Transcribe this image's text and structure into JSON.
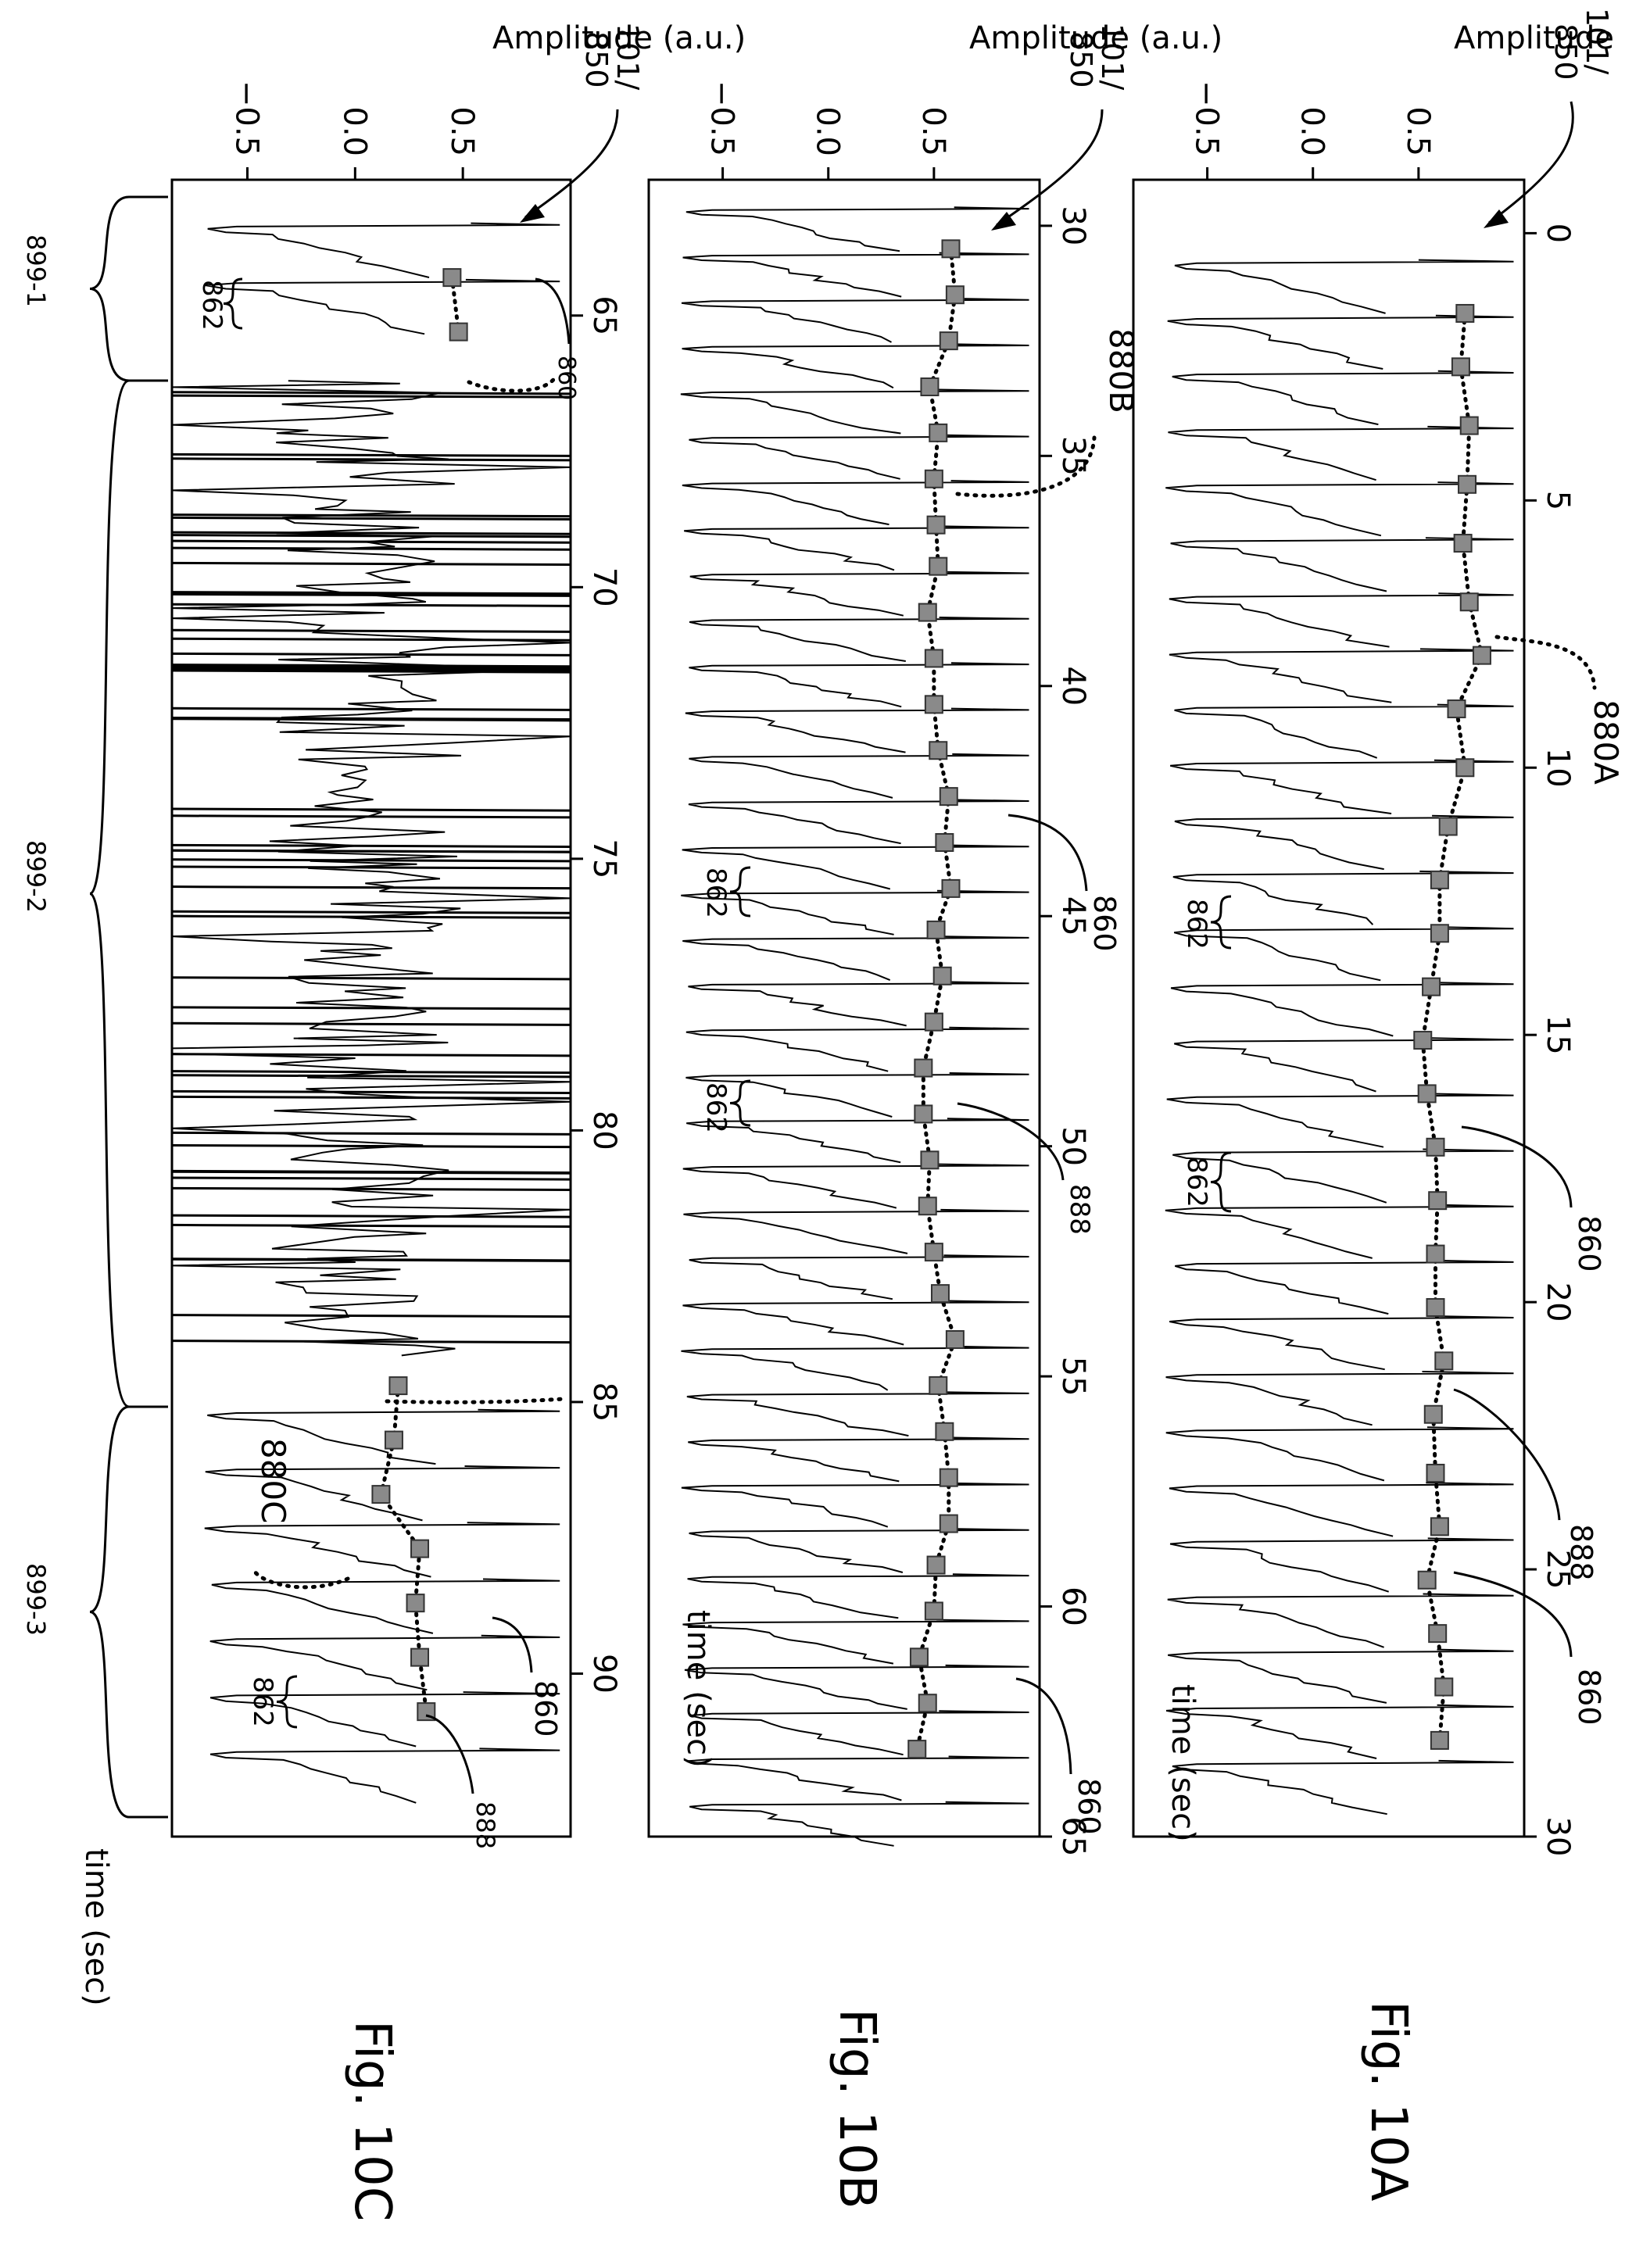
{
  "figures": [
    {
      "id": "10A",
      "caption": "Fig. 10A"
    },
    {
      "id": "10B",
      "caption": "Fig. 10B"
    },
    {
      "id": "10C",
      "caption": "Fig. 10C"
    }
  ],
  "callouts": {
    "sensor": "101/",
    "sensor_sub": "850",
    "beat": "860",
    "beat_pair": "862",
    "marker": "888",
    "trend_a": "880A",
    "trend_b": "880B",
    "trend_c": "880C",
    "segment_1": "899-1",
    "segment_2": "899-2",
    "segment_3": "899-3"
  },
  "chart_data": [
    {
      "id": "10A",
      "type": "line",
      "xlabel": "time (sec)",
      "ylabel": "Amplitude (a.u.)",
      "xlim": [
        -1,
        30
      ],
      "ylim": [
        -0.85,
        1.0
      ],
      "x_ticks": [
        0,
        5,
        10,
        15,
        20,
        25,
        30
      ],
      "y_ticks": [
        -0.5,
        0.0,
        0.5
      ],
      "y_tick_labels": [
        "−0.5",
        "0.0",
        "0.5"
      ],
      "beat_interval_sec": 1.04,
      "first_beat_sec": 0.5,
      "peak_markers": {
        "x": [
          1.5,
          2.5,
          3.6,
          4.7,
          5.8,
          6.9,
          7.9,
          8.9,
          10.0,
          11.1,
          12.1,
          13.1,
          14.1,
          15.1,
          16.1,
          17.1,
          18.1,
          19.1,
          20.1,
          21.1,
          22.1,
          23.2,
          24.2,
          25.2,
          26.2,
          27.2,
          28.2
        ],
        "y": [
          0.72,
          0.7,
          0.74,
          0.73,
          0.71,
          0.74,
          0.8,
          0.68,
          0.72,
          0.64,
          0.6,
          0.6,
          0.56,
          0.52,
          0.54,
          0.58,
          0.59,
          0.58,
          0.58,
          0.62,
          0.57,
          0.58,
          0.6,
          0.54,
          0.59,
          0.62,
          0.6
        ]
      }
    },
    {
      "id": "10B",
      "type": "line",
      "xlabel": "time (sec)",
      "ylabel": "Amplitude (a.u.)",
      "xlim": [
        29,
        65
      ],
      "ylim": [
        -0.85,
        1.0
      ],
      "x_ticks": [
        30,
        35,
        40,
        45,
        50,
        55,
        60,
        65
      ],
      "y_ticks": [
        -0.5,
        0.0,
        0.5
      ],
      "y_tick_labels": [
        "−0.5",
        "0.0",
        "0.5"
      ],
      "beat_interval_sec": 0.99,
      "first_beat_sec": 29.6,
      "peak_markers": {
        "x": [
          30.5,
          31.5,
          32.5,
          33.5,
          34.5,
          35.5,
          36.5,
          37.4,
          38.4,
          39.4,
          40.4,
          41.4,
          42.4,
          43.4,
          44.4,
          45.3,
          46.3,
          47.3,
          48.3,
          49.3,
          50.3,
          51.3,
          52.3,
          53.2,
          54.2,
          55.2,
          56.2,
          57.2,
          58.2,
          59.1,
          60.1,
          61.1,
          62.1,
          63.1
        ],
        "y": [
          0.58,
          0.6,
          0.57,
          0.48,
          0.52,
          0.5,
          0.51,
          0.52,
          0.47,
          0.5,
          0.5,
          0.52,
          0.57,
          0.55,
          0.58,
          0.51,
          0.54,
          0.5,
          0.45,
          0.45,
          0.48,
          0.47,
          0.5,
          0.53,
          0.6,
          0.52,
          0.55,
          0.57,
          0.57,
          0.51,
          0.5,
          0.43,
          0.47,
          0.42
        ]
      }
    },
    {
      "id": "10C",
      "type": "line",
      "xlabel": "time (sec)",
      "ylabel": "Amplitude (a.u.)",
      "xlim": [
        62.5,
        93
      ],
      "ylim": [
        -0.85,
        1.0
      ],
      "x_ticks": [
        65,
        70,
        75,
        80,
        85,
        90
      ],
      "y_ticks": [
        -0.5,
        0.0,
        0.5
      ],
      "y_tick_labels": [
        "−0.5",
        "0.0",
        "0.5"
      ],
      "beat_interval_sec": 1.04,
      "first_beat_sec": 63.3,
      "clean_windows_sec": [
        [
          62.5,
          66.2
        ],
        [
          84.2,
          93
        ]
      ],
      "artifact_window_sec": [
        66.2,
        84.2
      ],
      "peak_markers": {
        "x": [
          64.3,
          65.3,
          84.7,
          85.7,
          86.7,
          87.7,
          88.7,
          89.7,
          90.7
        ],
        "y": [
          0.45,
          0.48,
          0.2,
          0.18,
          0.12,
          0.3,
          0.28,
          0.3,
          0.33
        ]
      }
    }
  ]
}
